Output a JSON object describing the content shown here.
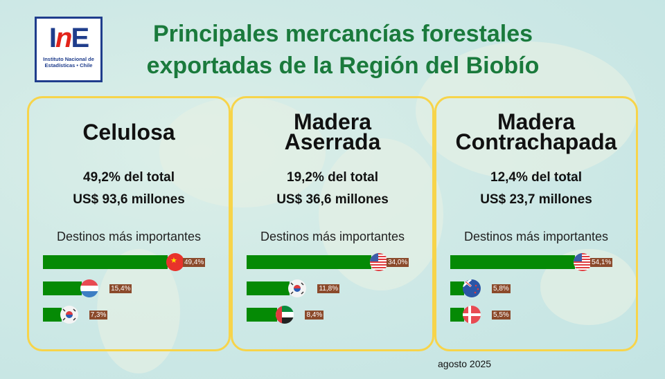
{
  "logo": {
    "mark_left": "I",
    "mark_n": "n",
    "mark_right": "E",
    "line1": "Instituto Nacional de",
    "line2": "Estadísticas • Chile"
  },
  "title": {
    "line1": "Principales mercancías forestales",
    "line2": "exportadas de la Región del Biobío"
  },
  "panels": [
    {
      "name_lines": [
        "Celulosa"
      ],
      "share": "49,2% del total",
      "value": "US$ 93,6 millones",
      "dest_label": "Destinos más importantes",
      "destinations": [
        {
          "country": "China",
          "flag": "cn",
          "pct": 49.4,
          "label": "49,4%"
        },
        {
          "country": "Países Bajos",
          "flag": "nl",
          "pct": 15.4,
          "label": "15,4%"
        },
        {
          "country": "Corea del Sur",
          "flag": "kr",
          "pct": 7.3,
          "label": "7,3%"
        }
      ]
    },
    {
      "name_lines": [
        "Madera",
        "Aserrada"
      ],
      "share": "19,2% del total",
      "value": "US$ 36,6 millones",
      "dest_label": "Destinos más importantes",
      "destinations": [
        {
          "country": "Estados Unidos",
          "flag": "us",
          "pct": 34.0,
          "label": "34,0%"
        },
        {
          "country": "Corea del Sur",
          "flag": "kr",
          "pct": 11.8,
          "label": "11,8%"
        },
        {
          "country": "Emiratos Árabes Unidos",
          "flag": "ae",
          "pct": 8.4,
          "label": "8,4%"
        }
      ]
    },
    {
      "name_lines": [
        "Madera",
        "Contrachapada"
      ],
      "share": "12,4% del total",
      "value": "US$ 23,7 millones",
      "dest_label": "Destinos más importantes",
      "destinations": [
        {
          "country": "Estados Unidos",
          "flag": "us",
          "pct": 54.1,
          "label": "54,1%"
        },
        {
          "country": "Nueva Zelanda",
          "flag": "nz",
          "pct": 5.8,
          "label": "5,8%"
        },
        {
          "country": "Dinamarca",
          "flag": "dk",
          "pct": 5.5,
          "label": "5,5%"
        }
      ]
    }
  ],
  "colors": {
    "title": "#1a7a3c",
    "bar": "#058a05",
    "label_bg": "#8b4a2b",
    "border": "#f7d44a"
  },
  "date": "agosto 2025"
}
